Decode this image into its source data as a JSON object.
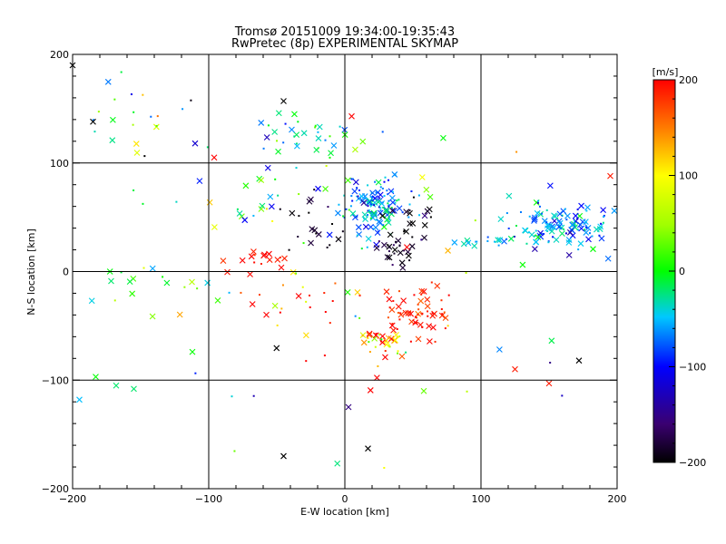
{
  "chart_data": {
    "type": "scatter",
    "title": "Tromsø 20151009 19:34:00-19:35:43",
    "subtitle": "RwPretec (8p) EXPERIMENTAL SKYMAP",
    "xlabel": "E-W location [km]",
    "ylabel": "N-S location [km]",
    "xlim": [
      -200,
      200
    ],
    "ylim": [
      -200,
      200
    ],
    "xticks": [
      -200,
      -100,
      0,
      100,
      200
    ],
    "yticks": [
      -200,
      -100,
      0,
      100,
      200
    ],
    "grid": true,
    "colorbar": {
      "label": "[m/s]",
      "min": -200,
      "max": 200,
      "ticks": [
        -200,
        -100,
        0,
        100,
        200
      ],
      "colormap": "rainbow"
    },
    "markers": [
      "x (cross)",
      "+ (small dot)"
    ],
    "clusters": [
      {
        "x": 22,
        "y": 60,
        "sx": 12,
        "sy": 14,
        "n": 140,
        "v": -60,
        "vs": 30
      },
      {
        "x": 160,
        "y": 40,
        "sx": 18,
        "sy": 12,
        "n": 130,
        "v": -60,
        "vs": 35
      },
      {
        "x": -25,
        "y": 125,
        "sx": 20,
        "sy": 12,
        "n": 35,
        "v": -30,
        "vs": 45
      },
      {
        "x": 40,
        "y": 18,
        "sx": 7,
        "sy": 5,
        "n": 25,
        "v": -180,
        "vs": 15
      },
      {
        "x": 55,
        "y": -35,
        "sx": 12,
        "sy": 14,
        "n": 60,
        "v": 185,
        "vs": 15
      },
      {
        "x": 25,
        "y": -65,
        "sx": 10,
        "sy": 8,
        "n": 40,
        "v": 120,
        "vs": 90
      },
      {
        "x": -65,
        "y": 8,
        "sx": 15,
        "sy": 6,
        "n": 18,
        "v": 190,
        "vs": 10
      },
      {
        "x": -25,
        "y": 45,
        "sx": 12,
        "sy": 14,
        "n": 20,
        "v": -190,
        "vs": 20
      },
      {
        "x": 50,
        "y": 45,
        "sx": 8,
        "sy": 12,
        "n": 18,
        "v": -190,
        "vs": 15
      },
      {
        "x": 100,
        "y": 27,
        "sx": 15,
        "sy": 3,
        "n": 14,
        "v": -55,
        "vs": 20
      },
      {
        "x": -60,
        "y": 60,
        "sx": 30,
        "sy": 25,
        "n": 22,
        "v": 0,
        "vs": 60
      },
      {
        "x": -30,
        "y": -30,
        "sx": 30,
        "sy": 15,
        "n": 25,
        "v": 150,
        "vs": 60
      },
      {
        "x": -140,
        "y": -20,
        "sx": 20,
        "sy": 15,
        "n": 18,
        "v": 0,
        "vs": 30
      },
      {
        "x": -160,
        "y": 120,
        "sx": 25,
        "sy": 35,
        "n": 25,
        "v": -20,
        "vs": 110
      },
      {
        "x": 0,
        "y": 0,
        "sx": 110,
        "sy": 90,
        "n": 45,
        "v": 0,
        "vs": 130
      }
    ],
    "isolated_points": [
      {
        "x": -45,
        "y": -170,
        "v": -200
      },
      {
        "x": 17,
        "y": -163,
        "v": -200
      },
      {
        "x": 172,
        "y": -82,
        "v": -200
      },
      {
        "x": 125,
        "y": -90,
        "v": 190
      },
      {
        "x": 150,
        "y": -103,
        "v": 190
      },
      {
        "x": -195,
        "y": -118,
        "v": -50
      },
      {
        "x": -183,
        "y": -97,
        "v": 0
      },
      {
        "x": -168,
        "y": -105,
        "v": -20
      },
      {
        "x": -155,
        "y": -108,
        "v": -20
      },
      {
        "x": -112,
        "y": -74,
        "v": 0
      },
      {
        "x": 58,
        "y": -110,
        "v": 30
      },
      {
        "x": -200,
        "y": 190,
        "v": -200
      },
      {
        "x": -185,
        "y": 138,
        "v": -200
      },
      {
        "x": -45,
        "y": 157,
        "v": -200
      },
      {
        "x": 5,
        "y": 143,
        "v": 200
      },
      {
        "x": -110,
        "y": 118,
        "v": -120
      },
      {
        "x": 195,
        "y": 88,
        "v": 190
      },
      {
        "x": -96,
        "y": 105,
        "v": 200
      }
    ]
  }
}
